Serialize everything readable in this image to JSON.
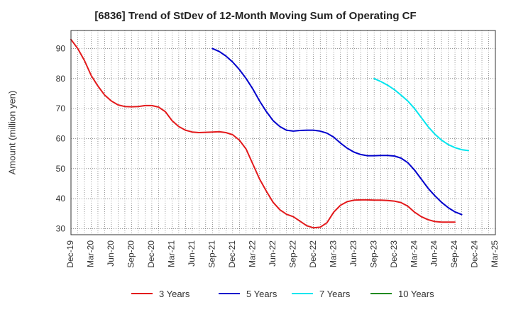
{
  "chart_data": {
    "type": "line",
    "title": "[6836]  Trend of StDev of 12-Month Moving Sum of Operating CF",
    "xlabel": "",
    "ylabel": "Amount (million yen)",
    "ylim": [
      28,
      96
    ],
    "yticks": [
      30,
      40,
      50,
      60,
      70,
      80,
      90
    ],
    "xticks": [
      "Dec-19",
      "Mar-20",
      "Jun-20",
      "Sep-20",
      "Dec-20",
      "Mar-21",
      "Jun-21",
      "Sep-21",
      "Dec-21",
      "Mar-22",
      "Jun-22",
      "Sep-22",
      "Dec-22",
      "Mar-23",
      "Jun-23",
      "Sep-23",
      "Dec-23",
      "Mar-24",
      "Jun-24",
      "Sep-24",
      "Dec-24",
      "Mar-25"
    ],
    "grid": true,
    "legend_position": "bottom",
    "series": [
      {
        "name": "3 Years",
        "color": "#e31a1c",
        "start_index": 0,
        "values": [
          93,
          90,
          86,
          81,
          77.5,
          74.5,
          72.5,
          71.2,
          70.7,
          70.6,
          70.7,
          71,
          71,
          70.5,
          69,
          66,
          64,
          62.8,
          62.2,
          62,
          62.1,
          62.2,
          62.3,
          62,
          61.3,
          59.5,
          56.5,
          51.5,
          46.5,
          42.5,
          38.8,
          36.3,
          34.8,
          34,
          32.5,
          31,
          30.3,
          30.5,
          32,
          35.5,
          37.8,
          39,
          39.5,
          39.6,
          39.6,
          39.5,
          39.5,
          39.4,
          39.2,
          38.7,
          37.5,
          35.5,
          34,
          33,
          32.4,
          32.2,
          32.2,
          32.2
        ]
      },
      {
        "name": "5 Years",
        "color": "#0000cc",
        "start_index": 21,
        "values": [
          90,
          89,
          87.5,
          85.5,
          83,
          80,
          76.5,
          72.5,
          69,
          66,
          64,
          62.8,
          62.5,
          62.7,
          62.8,
          62.8,
          62.5,
          61.8,
          60.5,
          58.5,
          56.8,
          55.5,
          54.7,
          54.3,
          54.3,
          54.4,
          54.4,
          54.2,
          53.5,
          52,
          49.5,
          46.5,
          43.5,
          41,
          38.8,
          37,
          35.6,
          34.7
        ]
      },
      {
        "name": "7 Years",
        "color": "#00e5ee",
        "start_index": 45,
        "values": [
          80,
          79,
          77.8,
          76.3,
          74.5,
          72.5,
          70,
          67,
          64,
          61.5,
          59.5,
          58,
          57,
          56.3,
          56
        ]
      },
      {
        "name": "10 Years",
        "color": "#228b22",
        "start_index": 0,
        "values": []
      }
    ]
  }
}
